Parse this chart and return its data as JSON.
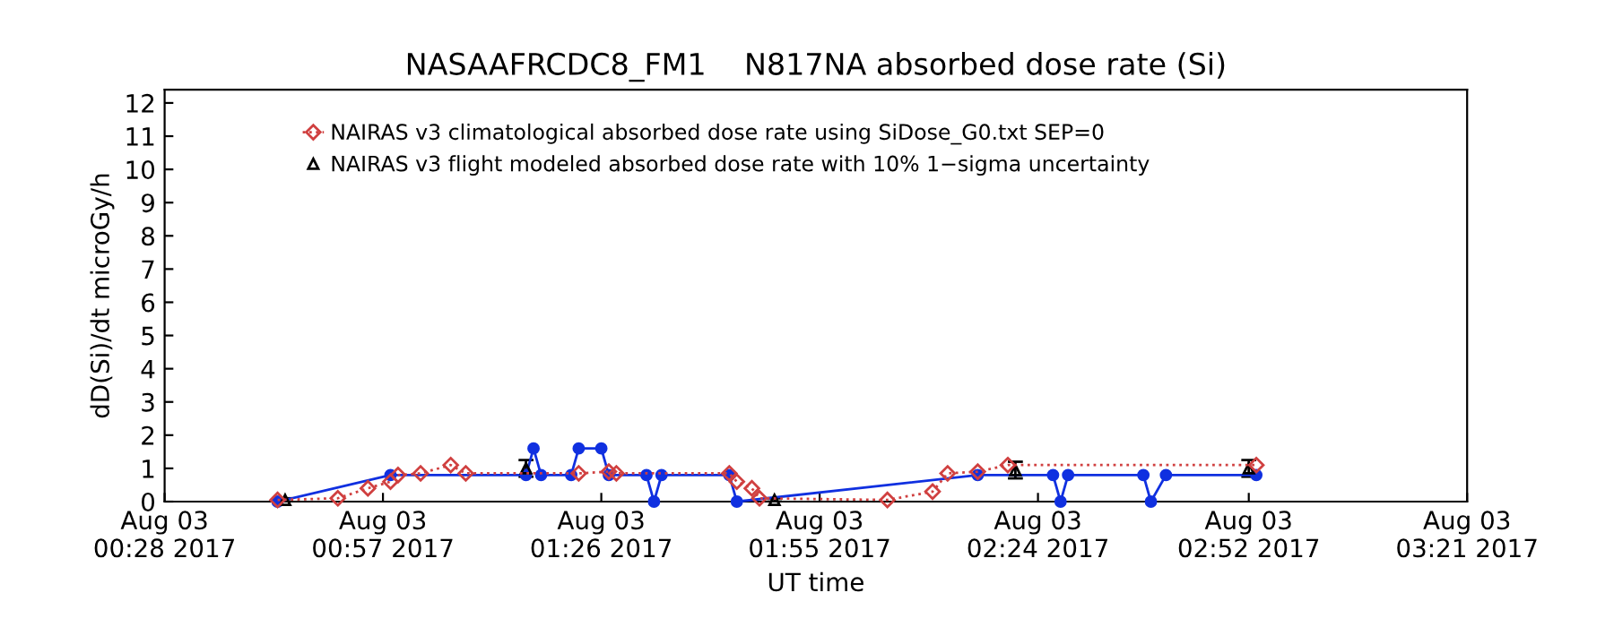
{
  "chart_data": {
    "type": "line",
    "title": "NASAAFRCDC8_FM1    N817NA absorbed dose rate (Si)",
    "xlabel": "UT time",
    "ylabel": "dD(Si)/dt microGy/h",
    "xlim": [
      "2017-08-03T00:28",
      "2017-08-03T03:21"
    ],
    "xticks": [
      {
        "value": "2017-08-03T00:28",
        "label": "Aug 03\n00:28 2017"
      },
      {
        "value": "2017-08-03T00:57",
        "label": "Aug 03\n00:57 2017"
      },
      {
        "value": "2017-08-03T01:26",
        "label": "Aug 03\n01:26 2017"
      },
      {
        "value": "2017-08-03T01:55",
        "label": "Aug 03\n01:55 2017"
      },
      {
        "value": "2017-08-03T02:24",
        "label": "Aug 03\n02:24 2017"
      },
      {
        "value": "2017-08-03T02:52",
        "label": "Aug 03\n02:52 2017"
      },
      {
        "value": "2017-08-03T03:21",
        "label": "Aug 03\n03:21 2017"
      }
    ],
    "ylim": [
      0,
      12.4
    ],
    "yticks": [
      0,
      1,
      2,
      3,
      4,
      5,
      6,
      7,
      8,
      9,
      10,
      11,
      12
    ],
    "grid": false,
    "legend": "top left",
    "series": [
      {
        "name": "NAIRAS v3 climatological absorbed dose rate using SiDose_G0.txt SEP=0",
        "color": "#d04040",
        "marker": "diamond",
        "line_style": "dotted",
        "x": [
          "2017-08-03T00:43",
          "2017-08-03T00:51",
          "2017-08-03T00:55",
          "2017-08-03T00:58",
          "2017-08-03T00:59",
          "2017-08-03T01:02",
          "2017-08-03T01:06",
          "2017-08-03T01:08",
          "2017-08-03T01:23",
          "2017-08-03T01:27",
          "2017-08-03T01:28",
          "2017-08-03T01:43",
          "2017-08-03T01:44",
          "2017-08-03T01:46",
          "2017-08-03T01:47",
          "2017-08-03T02:04",
          "2017-08-03T02:10",
          "2017-08-03T02:12",
          "2017-08-03T02:16",
          "2017-08-03T02:20",
          "2017-08-03T02:53"
        ],
        "values": [
          0.05,
          0.1,
          0.4,
          0.6,
          0.8,
          0.85,
          1.1,
          0.85,
          0.85,
          0.9,
          0.85,
          0.85,
          0.6,
          0.4,
          0.1,
          0.05,
          0.3,
          0.85,
          0.9,
          1.1,
          1.1
        ]
      },
      {
        "name": "NAIRAS v3 flight modeled absorbed dose rate with 10% 1−sigma uncertainty",
        "type": "scatter",
        "color": "#000000",
        "marker": "triangle",
        "x": [
          "2017-08-03T00:44",
          "2017-08-03T01:16",
          "2017-08-03T01:49",
          "2017-08-03T02:21",
          "2017-08-03T02:52"
        ],
        "values": [
          0.05,
          1.0,
          0.05,
          0.95,
          1.0
        ],
        "errors": [
          0.05,
          0.25,
          0.05,
          0.25,
          0.25
        ]
      },
      {
        "color": "#1030e0",
        "marker": "circle",
        "line_style": "solid",
        "x": [
          "2017-08-03T00:43",
          "2017-08-03T00:58",
          "2017-08-03T01:16",
          "2017-08-03T01:17",
          "2017-08-03T01:18",
          "2017-08-03T01:22",
          "2017-08-03T01:23",
          "2017-08-03T01:26",
          "2017-08-03T01:27",
          "2017-08-03T01:32",
          "2017-08-03T01:33",
          "2017-08-03T01:34",
          "2017-08-03T01:43",
          "2017-08-03T01:44",
          "2017-08-03T02:16",
          "2017-08-03T02:26",
          "2017-08-03T02:27",
          "2017-08-03T02:28",
          "2017-08-03T02:38",
          "2017-08-03T02:39",
          "2017-08-03T02:41",
          "2017-08-03T02:53"
        ],
        "values": [
          0,
          0.8,
          0.8,
          1.6,
          0.8,
          0.8,
          1.6,
          1.6,
          0.8,
          0.8,
          0,
          0.8,
          0.8,
          0,
          0.8,
          0.8,
          0,
          0.8,
          0.8,
          0,
          0.8,
          0.8
        ]
      }
    ]
  }
}
